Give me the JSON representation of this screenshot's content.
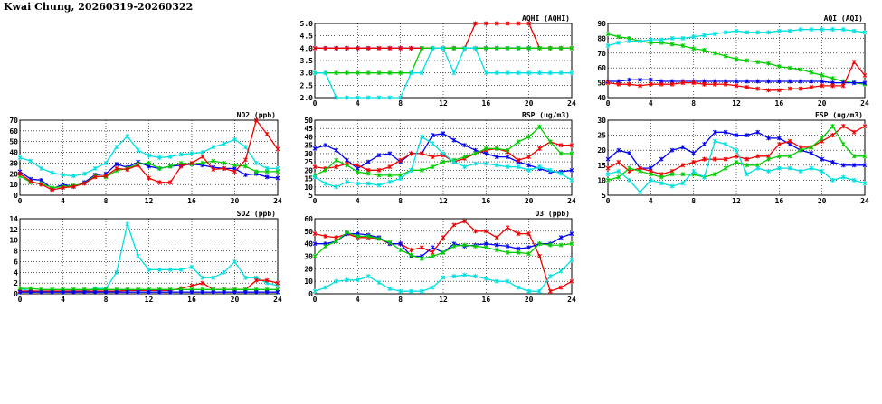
{
  "page": {
    "title": "Kwai Chung, 20260319-20260322"
  },
  "colors": {
    "blue": "#0000ee",
    "red": "#ee0000",
    "green": "#00cc00",
    "cyan": "#00e0e0"
  },
  "chart_data": [
    {
      "id": "aqhi",
      "type": "line",
      "title": "AQHI (AQHI)",
      "xlim": [
        0,
        24
      ],
      "xticks": [
        0,
        4,
        8,
        12,
        16,
        20,
        24
      ],
      "ylim": [
        2.0,
        5.0
      ],
      "yticks": [
        2.0,
        2.5,
        3.0,
        3.5,
        4.0,
        4.5,
        5.0
      ],
      "ytick_decimals": 1,
      "grid": true,
      "series": [
        {
          "color": "blue",
          "values": [
            4,
            4,
            4,
            4,
            4,
            4,
            4,
            4,
            4,
            4,
            4,
            4,
            4,
            4,
            4,
            4,
            4,
            4,
            4,
            4,
            4,
            4,
            4,
            4,
            4
          ]
        },
        {
          "color": "red",
          "values": [
            4,
            4,
            4,
            4,
            4,
            4,
            4,
            4,
            4,
            4,
            4,
            4,
            4,
            4,
            4,
            5,
            5,
            5,
            5,
            5,
            5,
            4,
            4,
            4,
            4
          ]
        },
        {
          "color": "green",
          "values": [
            3,
            3,
            3,
            3,
            3,
            3,
            3,
            3,
            3,
            3,
            4,
            4,
            4,
            4,
            4,
            4,
            4,
            4,
            4,
            4,
            4,
            4,
            4,
            4,
            4
          ]
        },
        {
          "color": "cyan",
          "values": [
            3,
            3,
            2,
            2,
            2,
            2,
            2,
            2,
            2,
            3,
            3,
            4,
            4,
            3,
            4,
            4,
            3,
            3,
            3,
            3,
            3,
            3,
            3,
            3,
            3
          ]
        }
      ]
    },
    {
      "id": "aqi",
      "type": "line",
      "title": "AQI (AQI)",
      "xlim": [
        0,
        24
      ],
      "xticks": [
        0,
        4,
        8,
        12,
        16,
        20,
        24
      ],
      "ylim": [
        40,
        90
      ],
      "yticks": [
        40,
        50,
        60,
        70,
        80,
        90
      ],
      "ytick_decimals": 0,
      "grid": true,
      "series": [
        {
          "color": "green",
          "values": [
            83,
            81,
            80,
            78,
            77,
            77,
            76,
            75,
            73,
            72,
            70,
            68,
            66,
            65,
            64,
            63,
            61,
            60,
            59,
            57,
            55,
            53,
            51,
            50,
            49
          ]
        },
        {
          "color": "cyan",
          "values": [
            75,
            77,
            78,
            78,
            79,
            79,
            80,
            80,
            81,
            82,
            83,
            84,
            85,
            84,
            84,
            84,
            85,
            85,
            86,
            86,
            86,
            86,
            86,
            85,
            84
          ]
        },
        {
          "color": "blue",
          "values": [
            51,
            51,
            52,
            52,
            52,
            51,
            51,
            51,
            51,
            51,
            51,
            51,
            51,
            51,
            51,
            51,
            51,
            51,
            51,
            51,
            51,
            50,
            50,
            50,
            50
          ]
        },
        {
          "color": "red",
          "values": [
            50,
            49,
            49,
            48,
            49,
            49,
            49,
            50,
            50,
            49,
            49,
            49,
            48,
            47,
            46,
            45,
            45,
            46,
            46,
            47,
            48,
            48,
            48,
            64,
            55
          ]
        }
      ]
    },
    {
      "id": "no2",
      "type": "line",
      "title": "NO2 (ppb)",
      "xlim": [
        0,
        24
      ],
      "xticks": [
        0,
        4,
        8,
        12,
        16,
        20,
        24
      ],
      "ylim": [
        0,
        70
      ],
      "yticks": [
        0,
        10,
        20,
        30,
        40,
        50,
        60,
        70
      ],
      "ytick_decimals": 0,
      "grid": true,
      "series": [
        {
          "color": "cyan",
          "values": [
            35,
            32,
            25,
            21,
            19,
            18,
            20,
            25,
            30,
            45,
            55,
            42,
            37,
            35,
            36,
            38,
            39,
            40,
            45,
            48,
            52,
            45,
            30,
            25,
            25
          ]
        },
        {
          "color": "blue",
          "values": [
            22,
            15,
            14,
            6,
            10,
            8,
            12,
            19,
            20,
            29,
            26,
            31,
            27,
            25,
            27,
            28,
            29,
            28,
            26,
            25,
            25,
            19,
            20,
            17,
            16
          ]
        },
        {
          "color": "green",
          "values": [
            18,
            12,
            11,
            7,
            8,
            9,
            11,
            18,
            17,
            23,
            25,
            29,
            30,
            25,
            27,
            30,
            29,
            30,
            32,
            30,
            28,
            27,
            22,
            22,
            22
          ]
        },
        {
          "color": "red",
          "values": [
            20,
            13,
            10,
            5,
            7,
            8,
            11,
            17,
            18,
            25,
            24,
            28,
            16,
            12,
            12,
            27,
            30,
            36,
            24,
            25,
            22,
            33,
            70,
            57,
            43
          ]
        }
      ]
    },
    {
      "id": "rsp",
      "type": "line",
      "title": "RSP (ug/m3)",
      "xlim": [
        0,
        24
      ],
      "xticks": [
        0,
        4,
        8,
        12,
        16,
        20,
        24
      ],
      "ylim": [
        5,
        50
      ],
      "yticks": [
        5,
        10,
        15,
        20,
        25,
        30,
        35,
        40,
        45,
        50
      ],
      "ytick_decimals": 0,
      "grid": true,
      "series": [
        {
          "color": "blue",
          "values": [
            33,
            35,
            32,
            26,
            21,
            25,
            29,
            30,
            25,
            30,
            30,
            41,
            42,
            38,
            35,
            32,
            30,
            28,
            28,
            25,
            23,
            21,
            19,
            19,
            20
          ]
        },
        {
          "color": "red",
          "values": [
            22,
            21,
            22,
            24,
            23,
            20,
            20,
            22,
            26,
            30,
            30,
            28,
            29,
            25,
            27,
            30,
            32,
            33,
            31,
            26,
            28,
            33,
            37,
            35,
            35
          ]
        },
        {
          "color": "green",
          "values": [
            17,
            20,
            26,
            23,
            19,
            18,
            17,
            17,
            17,
            20,
            20,
            22,
            25,
            26,
            28,
            30,
            33,
            33,
            32,
            37,
            40,
            46,
            37,
            30,
            30
          ]
        },
        {
          "color": "cyan",
          "values": [
            16,
            12,
            10,
            13,
            12,
            12,
            11,
            13,
            15,
            20,
            40,
            36,
            30,
            25,
            22,
            24,
            24,
            23,
            22,
            22,
            20,
            22,
            20,
            18,
            14
          ]
        }
      ]
    },
    {
      "id": "fsp",
      "type": "line",
      "title": "FSP (ug/m3)",
      "xlim": [
        0,
        24
      ],
      "xticks": [
        0,
        4,
        8,
        12,
        16,
        20,
        24
      ],
      "ylim": [
        5,
        30
      ],
      "yticks": [
        5,
        10,
        15,
        20,
        25,
        30
      ],
      "ytick_decimals": 0,
      "grid": true,
      "series": [
        {
          "color": "blue",
          "values": [
            17,
            20,
            19,
            14,
            14,
            17,
            20,
            21,
            19,
            22,
            26,
            26,
            25,
            25,
            26,
            24,
            24,
            22,
            20,
            19,
            17,
            16,
            15,
            15,
            15
          ]
        },
        {
          "color": "red",
          "values": [
            14,
            16,
            13,
            14,
            13,
            12,
            13,
            15,
            16,
            17,
            17,
            17,
            18,
            17,
            18,
            18,
            22,
            23,
            21,
            21,
            23,
            25,
            28,
            26,
            28
          ]
        },
        {
          "color": "green",
          "values": [
            10,
            11,
            14,
            13,
            12,
            11,
            12,
            12,
            12,
            11,
            12,
            14,
            16,
            15,
            15,
            17,
            18,
            18,
            20,
            21,
            24,
            28,
            22,
            18,
            18
          ]
        },
        {
          "color": "cyan",
          "values": [
            12,
            13,
            10,
            6,
            10,
            9,
            8,
            9,
            13,
            11,
            23,
            22,
            20,
            12,
            14,
            13,
            14,
            14,
            13,
            14,
            13,
            10,
            11,
            10,
            9
          ]
        }
      ]
    },
    {
      "id": "so2",
      "type": "line",
      "title": "SO2 (ppb)",
      "xlim": [
        0,
        24
      ],
      "xticks": [
        0,
        4,
        8,
        12,
        16,
        20,
        24
      ],
      "ylim": [
        0,
        14
      ],
      "yticks": [
        0,
        2,
        4,
        6,
        8,
        10,
        12,
        14
      ],
      "ytick_decimals": 0,
      "grid": true,
      "series": [
        {
          "color": "cyan",
          "values": [
            1,
            0.5,
            0.5,
            0.5,
            0.5,
            0.5,
            0.5,
            1,
            1,
            4,
            13,
            7,
            4.5,
            4.5,
            4.5,
            4.5,
            5,
            3,
            3,
            4,
            6,
            3,
            3,
            2,
            1.5
          ]
        },
        {
          "color": "red",
          "values": [
            0.5,
            0.5,
            0.5,
            0.5,
            0.5,
            0.5,
            0.5,
            0.5,
            0.5,
            0.5,
            0.6,
            0.6,
            0.6,
            0.6,
            0.6,
            1,
            1.5,
            2,
            0.8,
            0.8,
            0.8,
            0.8,
            2.5,
            2.5,
            2
          ]
        },
        {
          "color": "green",
          "values": [
            1,
            1,
            0.8,
            0.8,
            0.8,
            0.8,
            0.8,
            0.8,
            0.8,
            0.8,
            0.8,
            0.8,
            0.8,
            0.8,
            0.8,
            0.8,
            0.8,
            0.8,
            0.8,
            0.8,
            0.8,
            0.8,
            0.8,
            0.8,
            0.8
          ]
        },
        {
          "color": "blue",
          "values": [
            0.3,
            0.3,
            0.3,
            0.3,
            0.3,
            0.3,
            0.3,
            0.3,
            0.3,
            0.3,
            0.3,
            0.3,
            0.3,
            0.3,
            0.3,
            0.3,
            0.3,
            0.3,
            0.3,
            0.3,
            0.3,
            0.3,
            0.3,
            0.3,
            0.3
          ]
        }
      ]
    },
    {
      "id": "o3",
      "type": "line",
      "title": "O3 (ppb)",
      "xlim": [
        0,
        24
      ],
      "xticks": [
        0,
        4,
        8,
        12,
        16,
        20,
        24
      ],
      "ylim": [
        0,
        60
      ],
      "yticks": [
        0,
        10,
        20,
        30,
        40,
        50,
        60
      ],
      "ytick_decimals": 0,
      "grid": true,
      "series": [
        {
          "color": "red",
          "values": [
            48,
            46,
            45,
            48,
            45,
            45,
            44,
            40,
            40,
            35,
            37,
            33,
            45,
            55,
            58,
            50,
            50,
            45,
            53,
            48,
            48,
            30,
            2,
            5,
            10
          ]
        },
        {
          "color": "blue",
          "values": [
            40,
            40,
            42,
            48,
            48,
            47,
            45,
            40,
            40,
            30,
            30,
            37,
            33,
            40,
            38,
            39,
            40,
            39,
            38,
            36,
            37,
            40,
            40,
            45,
            48
          ]
        },
        {
          "color": "green",
          "values": [
            30,
            38,
            42,
            49,
            46,
            46,
            44,
            41,
            35,
            31,
            28,
            30,
            33,
            38,
            39,
            38,
            37,
            35,
            33,
            33,
            32,
            40,
            39,
            39,
            40
          ]
        },
        {
          "color": "cyan",
          "values": [
            2,
            5,
            10,
            11,
            11,
            14,
            9,
            4,
            2,
            2,
            2,
            5,
            13,
            14,
            15,
            14,
            12,
            10,
            10,
            5,
            2,
            2,
            14,
            18,
            27
          ]
        }
      ]
    }
  ]
}
